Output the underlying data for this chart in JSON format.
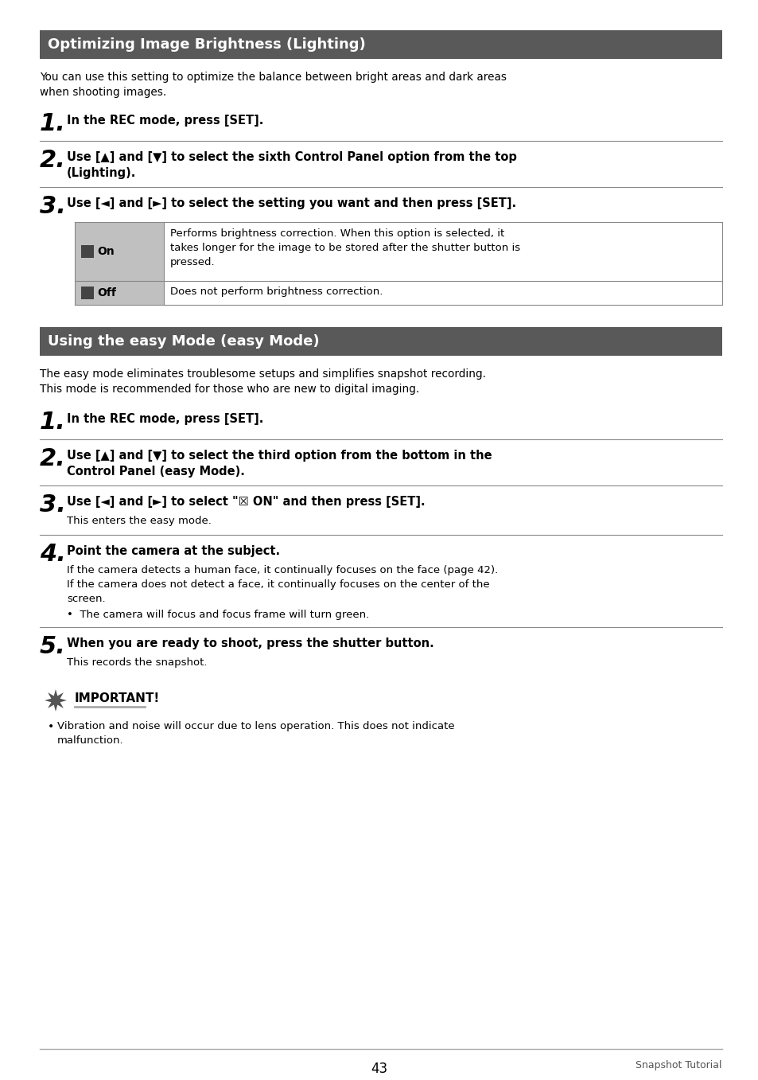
{
  "bg_color": "#ffffff",
  "header1_bg": "#595959",
  "header1_text": "Optimizing Image Brightness (Lighting)",
  "header2_bg": "#595959",
  "header2_text": "Using the easy Mode (easy Mode)",
  "header_text_color": "#ffffff",
  "body_text_color": "#000000",
  "intro1_line1": "You can use this setting to optimize the balance between bright areas and dark areas",
  "intro1_line2": "when shooting images.",
  "intro2_line1": "The easy mode eliminates troublesome setups and simplifies snapshot recording.",
  "intro2_line2": "This mode is recommended for those who are new to digital imaging.",
  "important_text": "IMPORTANT!",
  "important_bullet": "•  Vibration and noise will occur due to lens operation. This does not indicate\n    malfunction.",
  "footer_page": "43",
  "footer_right": "Snapshot Tutorial",
  "header_bg": "#595959",
  "divider_color": "#888888",
  "table_label_bg": "#c0c0c0",
  "table_border_color": "#888888"
}
